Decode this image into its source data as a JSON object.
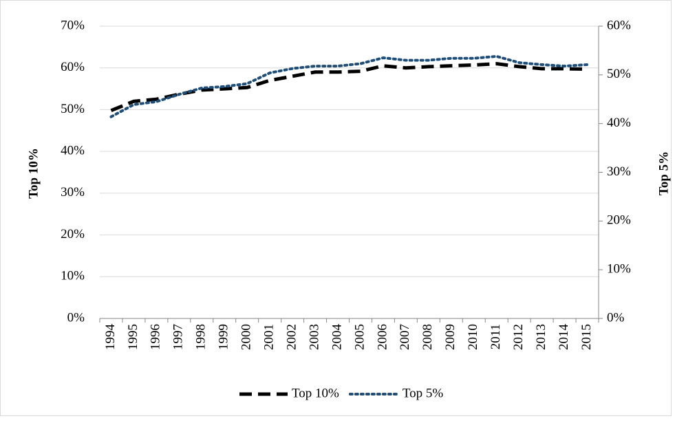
{
  "chart_data": {
    "type": "line",
    "categories": [
      "1994",
      "1995",
      "1996",
      "1997",
      "1998",
      "1999",
      "2000",
      "2001",
      "2002",
      "2003",
      "2004",
      "2005",
      "2006",
      "2007",
      "2008",
      "2009",
      "2010",
      "2011",
      "2012",
      "2013",
      "2014",
      "2015"
    ],
    "y_label": "Top 10%",
    "y2_label": "Top 5%",
    "ylim": [
      0,
      70
    ],
    "yticks": [
      {
        "value": 0,
        "label": "0%"
      },
      {
        "value": 10,
        "label": "10%"
      },
      {
        "value": 20,
        "label": "20%"
      },
      {
        "value": 30,
        "label": "30%"
      },
      {
        "value": 40,
        "label": "40%"
      },
      {
        "value": 50,
        "label": "50%"
      },
      {
        "value": 60,
        "label": "60%"
      },
      {
        "value": 70,
        "label": "70%"
      }
    ],
    "y2lim": [
      0,
      60
    ],
    "y2ticks": [
      {
        "value": 0,
        "label": "0%"
      },
      {
        "value": 10,
        "label": "10%"
      },
      {
        "value": 20,
        "label": "20%"
      },
      {
        "value": 30,
        "label": "30%"
      },
      {
        "value": 40,
        "label": "40%"
      },
      {
        "value": 50,
        "label": "50%"
      },
      {
        "value": 60,
        "label": "60%"
      }
    ],
    "grid": true,
    "legend": "bottom",
    "series": [
      {
        "name": "Top 10%",
        "color": "#000000",
        "dash": "dashed",
        "axis": "y",
        "values": [
          49.8,
          52,
          52.5,
          53.7,
          54.7,
          55,
          55.3,
          57,
          58,
          59,
          59,
          59.2,
          60.5,
          60,
          60.3,
          60.5,
          60.7,
          61,
          60.3,
          59.8,
          59.8,
          59.7
        ]
      },
      {
        "name": "Top 5%",
        "color": "#1f4e79",
        "dash": "dotted",
        "axis": "y2",
        "values": [
          41.4,
          43.9,
          44.5,
          46,
          47.3,
          47.6,
          48.2,
          50.4,
          51.3,
          51.8,
          51.8,
          52.3,
          53.5,
          53,
          53,
          53.4,
          53.4,
          53.8,
          52.5,
          52.1,
          51.8,
          52.1
        ]
      }
    ]
  }
}
